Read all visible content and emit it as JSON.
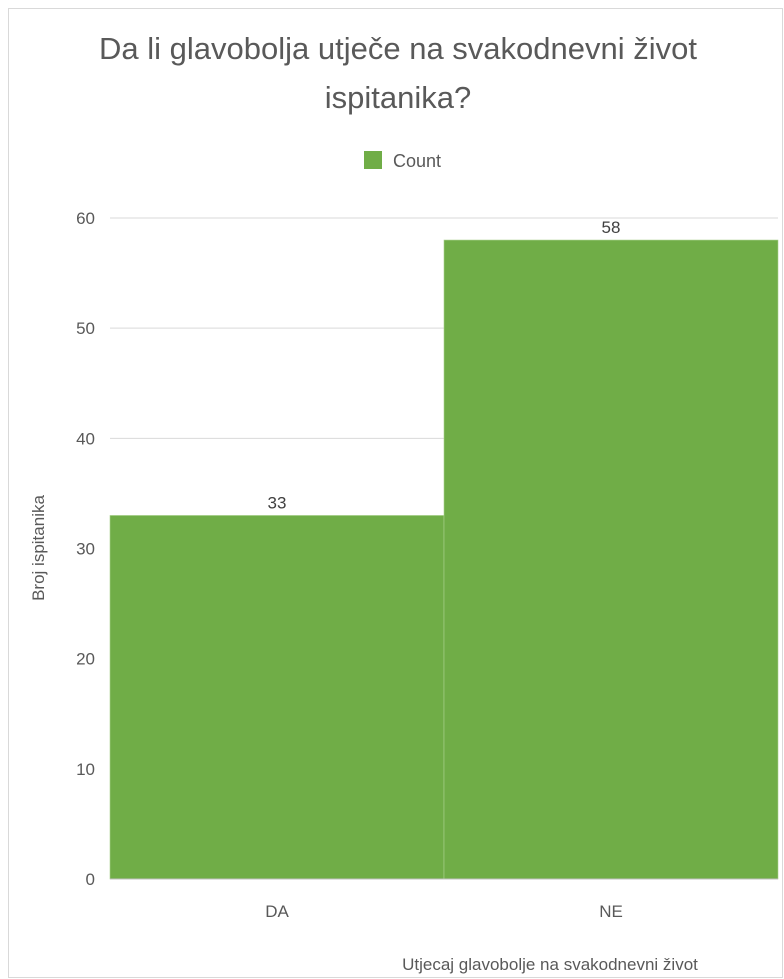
{
  "chart_data": {
    "type": "bar",
    "title_lines": [
      "Da li glavobolja utječe na svakodnevni život",
      "ispitanika?"
    ],
    "xlabel": "Utjecaj glavobolje na  svakodnevni život",
    "ylabel": "Broj ispitanika",
    "categories": [
      "DA",
      "NE"
    ],
    "series": [
      {
        "name": "Count",
        "values": [
          33,
          58
        ],
        "color": "#70AD47"
      }
    ],
    "ylim": [
      0,
      60
    ],
    "yticks": [
      0,
      10,
      20,
      30,
      40,
      50,
      60
    ],
    "grid": true,
    "legend_position": "top",
    "data_labels": true
  }
}
